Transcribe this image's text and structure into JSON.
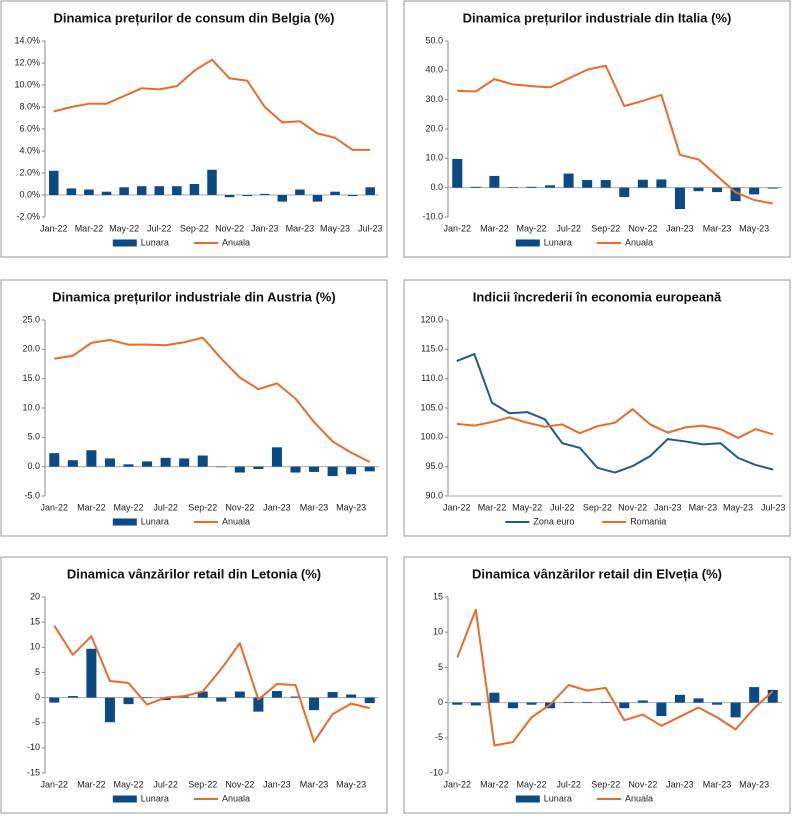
{
  "chart_data": [
    {
      "type": "combo",
      "title": "Dinamica prețurilor de consum din Belgia (%)",
      "categories": [
        "Jan-22",
        null,
        "Mar-22",
        null,
        "May-22",
        null,
        "Jul-22",
        null,
        "Sep-22",
        null,
        "Nov-22",
        null,
        "Jan-23",
        null,
        "Mar-23",
        null,
        "May-23",
        null,
        "Jul-23"
      ],
      "ylim": [
        -2,
        14
      ],
      "yticks": [
        {
          "value": -2,
          "label": "-2.0%"
        },
        {
          "value": 0,
          "label": "0.0%"
        },
        {
          "value": 2,
          "label": "2.0%"
        },
        {
          "value": 4,
          "label": "4.0%"
        },
        {
          "value": 6,
          "label": "6.0%"
        },
        {
          "value": 8,
          "label": "8.0%"
        },
        {
          "value": 10,
          "label": "10.0%"
        },
        {
          "value": 12,
          "label": "12.0%"
        },
        {
          "value": 14,
          "label": "14.0%"
        }
      ],
      "series": [
        {
          "name": "Lunara",
          "type": "bar",
          "color": "#0c4a86",
          "values": [
            2.2,
            0.6,
            0.5,
            0.3,
            0.7,
            0.8,
            0.8,
            0.8,
            1.0,
            2.3,
            -0.2,
            -0.1,
            0.1,
            -0.6,
            0.5,
            -0.6,
            0.3,
            -0.1,
            0.7
          ]
        },
        {
          "name": "Anuala",
          "type": "line",
          "color": "#ed6a2b",
          "values": [
            7.6,
            8.0,
            8.3,
            8.3,
            9.0,
            9.7,
            9.6,
            9.9,
            11.3,
            12.3,
            10.6,
            10.4,
            8.0,
            6.6,
            6.7,
            5.6,
            5.2,
            4.1,
            4.1
          ]
        }
      ]
    },
    {
      "type": "combo",
      "title": "Dinamica prețurilor industriale din Italia (%)",
      "categories": [
        "Jan-22",
        null,
        "Mar-22",
        null,
        "May-22",
        null,
        "Jul-22",
        null,
        "Sep-22",
        null,
        "Nov-22",
        null,
        "Jan-23",
        null,
        "Mar-23",
        null,
        "May-23",
        null
      ],
      "ylim": [
        -10,
        50
      ],
      "yticks": [
        {
          "value": -10,
          "label": "-10.0"
        },
        {
          "value": 0,
          "label": "0.0"
        },
        {
          "value": 10,
          "label": "10.0"
        },
        {
          "value": 20,
          "label": "20.0"
        },
        {
          "value": 30,
          "label": "30.0"
        },
        {
          "value": 40,
          "label": "40.0"
        },
        {
          "value": 50,
          "label": "50.0"
        }
      ],
      "series": [
        {
          "name": "Lunara",
          "type": "bar",
          "color": "#0c4a86",
          "values": [
            9.8,
            0.3,
            4.0,
            0.2,
            0.3,
            0.8,
            4.8,
            2.6,
            2.6,
            -3.2,
            2.7,
            2.8,
            -7.3,
            -1.2,
            -1.5,
            -4.6,
            -2.3,
            -0.3
          ]
        },
        {
          "name": "Anuala",
          "type": "line",
          "color": "#ed6a2b",
          "values": [
            33.0,
            32.8,
            37.0,
            35.2,
            34.6,
            34.2,
            37.2,
            40.2,
            41.6,
            27.8,
            29.6,
            31.6,
            11.2,
            9.6,
            4.0,
            -1.6,
            -4.2,
            -5.4
          ]
        }
      ]
    },
    {
      "type": "combo",
      "title": "Dinamica prețurilor industriale din Austria (%)",
      "categories": [
        "Jan-22",
        null,
        "Mar-22",
        null,
        "May-22",
        null,
        "Jul-22",
        null,
        "Sep-22",
        null,
        "Nov-22",
        null,
        "Jan-23",
        null,
        "Mar-23",
        null,
        "May-23",
        null
      ],
      "ylim": [
        -5,
        25
      ],
      "yticks": [
        {
          "value": -5,
          "label": "-5.0"
        },
        {
          "value": 0,
          "label": "0.0"
        },
        {
          "value": 5,
          "label": "5.0"
        },
        {
          "value": 10,
          "label": "10.0"
        },
        {
          "value": 15,
          "label": "15.0"
        },
        {
          "value": 20,
          "label": "20.0"
        },
        {
          "value": 25,
          "label": "25.0"
        }
      ],
      "series": [
        {
          "name": "Lunara",
          "type": "bar",
          "color": "#0c4a86",
          "values": [
            2.3,
            1.1,
            2.8,
            1.4,
            0.4,
            0.9,
            1.5,
            1.4,
            1.9,
            0.0,
            -1.0,
            -0.4,
            3.3,
            -1.0,
            -0.9,
            -1.6,
            -1.3,
            -0.8
          ]
        },
        {
          "name": "Anuala",
          "type": "line",
          "color": "#ed6a2b",
          "values": [
            18.4,
            18.9,
            21.1,
            21.6,
            20.8,
            20.8,
            20.7,
            21.2,
            22.0,
            18.4,
            15.2,
            13.2,
            14.2,
            11.6,
            7.6,
            4.3,
            2.4,
            0.8
          ]
        }
      ]
    },
    {
      "type": "line",
      "title": "Indicii încrederii în economia europeană",
      "categories": [
        "Jan-22",
        null,
        "Mar-22",
        null,
        "May-22",
        null,
        "Jul-22",
        null,
        "Sep-22",
        null,
        "Nov-22",
        null,
        "Jan-23",
        null,
        "Mar-23",
        null,
        "May-23",
        null,
        "Jul-23"
      ],
      "ylim": [
        90,
        120
      ],
      "yticks": [
        {
          "value": 90,
          "label": "90.0"
        },
        {
          "value": 95,
          "label": "95.0"
        },
        {
          "value": 100,
          "label": "100.0"
        },
        {
          "value": 105,
          "label": "105.0"
        },
        {
          "value": 110,
          "label": "110.0"
        },
        {
          "value": 115,
          "label": "115.0"
        },
        {
          "value": 120,
          "label": "120.0"
        }
      ],
      "series": [
        {
          "name": "Zona euro",
          "type": "line",
          "color": "#1f5a96",
          "values": [
            113.0,
            114.2,
            105.9,
            104.1,
            104.3,
            103.1,
            99.0,
            98.2,
            94.8,
            94.0,
            95.1,
            96.8,
            99.7,
            99.3,
            98.8,
            99.0,
            96.5,
            95.3,
            94.5
          ]
        },
        {
          "name": "Romania",
          "type": "line",
          "color": "#ed6a2b",
          "values": [
            102.3,
            102.0,
            102.6,
            103.4,
            102.5,
            101.8,
            102.2,
            100.7,
            101.9,
            102.5,
            104.8,
            102.2,
            100.8,
            101.7,
            102.0,
            101.4,
            99.9,
            101.4,
            100.5
          ]
        }
      ]
    },
    {
      "type": "combo",
      "title": "Dinamica vânzărilor retail din Letonia (%)",
      "categories": [
        "Jan-22",
        null,
        "Mar-22",
        null,
        "May-22",
        null,
        "Jul-22",
        null,
        "Sep-22",
        null,
        "Nov-22",
        null,
        "Jan-23",
        null,
        "Mar-23",
        null,
        "May-23",
        null
      ],
      "ylim": [
        -15,
        20
      ],
      "yticks": [
        -15,
        -10,
        -5,
        0,
        5,
        10,
        15,
        20
      ],
      "series": [
        {
          "name": "Lunara",
          "type": "bar",
          "color": "#0c4a86",
          "values": [
            -1.0,
            0.3,
            9.7,
            -4.9,
            -1.3,
            0.1,
            -0.5,
            0.2,
            1.2,
            -0.8,
            1.2,
            -2.8,
            1.3,
            0.2,
            -2.5,
            1.1,
            0.6,
            -1.1
          ]
        },
        {
          "name": "Anuala",
          "type": "line",
          "color": "#ed6a2b",
          "values": [
            14.3,
            8.5,
            12.2,
            3.3,
            2.9,
            -1.4,
            0.0,
            0.3,
            1.2,
            5.7,
            10.8,
            -0.4,
            2.7,
            2.5,
            -8.8,
            -3.3,
            -1.2,
            -2.1
          ]
        }
      ]
    },
    {
      "type": "combo",
      "title": "Dinamica vânzărilor retail din Elveția (%)",
      "categories": [
        "Jan-22",
        null,
        "Mar-22",
        null,
        "May-22",
        null,
        "Jul-22",
        null,
        "Sep-22",
        null,
        "Nov-22",
        null,
        "Jan-23",
        null,
        "Mar-23",
        null,
        "May-23",
        null
      ],
      "ylim": [
        -10,
        15
      ],
      "yticks": [
        -10,
        -5,
        0,
        5,
        10,
        15
      ],
      "series": [
        {
          "name": "Lunara",
          "type": "bar",
          "color": "#0c4a86",
          "values": [
            -0.3,
            -0.4,
            1.4,
            -0.8,
            -0.3,
            -0.8,
            0.1,
            0.1,
            0.1,
            -0.8,
            0.3,
            -1.9,
            1.1,
            0.6,
            -0.3,
            -2.1,
            2.2,
            1.8
          ]
        },
        {
          "name": "Anuala",
          "type": "line",
          "color": "#ed6a2b",
          "values": [
            6.4,
            13.2,
            -6.1,
            -5.6,
            -2.1,
            -0.3,
            2.5,
            1.7,
            2.1,
            -2.5,
            -1.7,
            -3.3,
            -2.0,
            -0.7,
            -2.1,
            -3.8,
            -0.8,
            1.6
          ]
        }
      ]
    }
  ]
}
